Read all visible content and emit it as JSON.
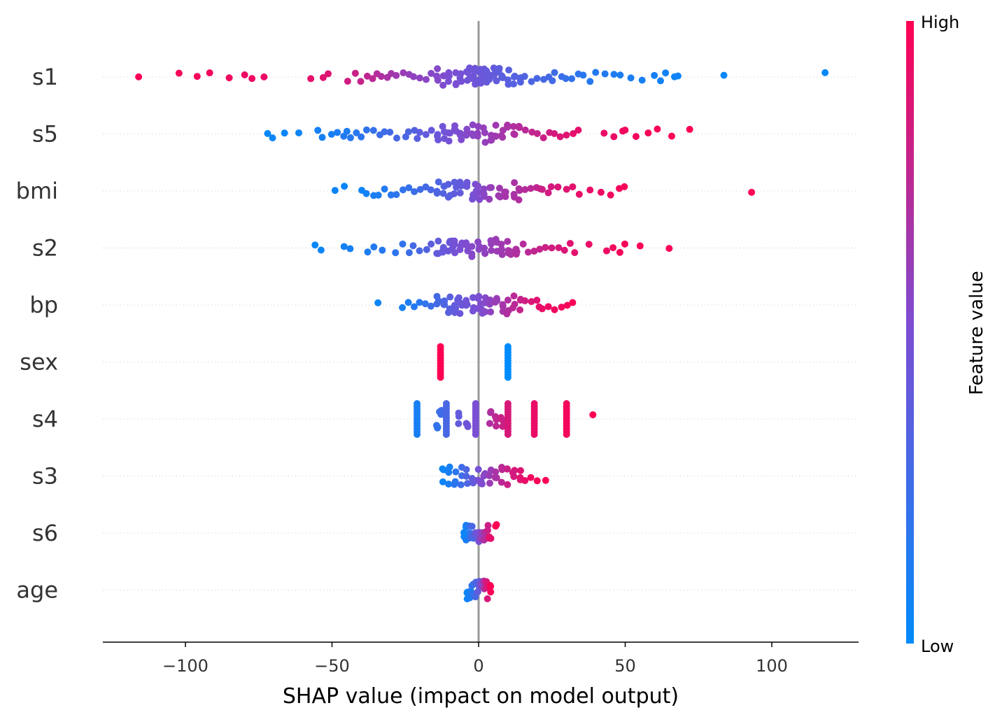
{
  "chart_data": {
    "type": "scatter",
    "subtype": "shap-beeswarm",
    "title": "",
    "xlabel": "SHAP value (impact on model output)",
    "ylabel": "",
    "xlim": [
      -127,
      130
    ],
    "xticks": [
      -100,
      -50,
      0,
      50,
      100
    ],
    "xtick_labels": [
      "−100",
      "−50",
      "0",
      "50",
      "100"
    ],
    "features": [
      "s1",
      "s5",
      "bmi",
      "s2",
      "bp",
      "sex",
      "s4",
      "s3",
      "s6",
      "age"
    ],
    "colorbar": {
      "label": "Feature value",
      "high_label": "High",
      "low_label": "Low",
      "low_color": "#008bfb",
      "mid_color": "#7a4fd4",
      "high_color": "#ff0052"
    },
    "zero_line_color": "#999999",
    "grid": "dotted horizontal per feature",
    "series": [
      {
        "feature": "s1",
        "x": [
          -116,
          -102,
          -96,
          -92,
          -85,
          -80,
          -77,
          -73,
          -57,
          -53,
          -51,
          -45,
          -42,
          -40,
          -38,
          -36,
          -35,
          -33,
          -31,
          -30,
          -28,
          -26,
          -24,
          -22,
          -20,
          -18,
          -16,
          -14,
          -12,
          -10,
          -8,
          -6,
          -4,
          -3,
          -2,
          -1,
          0,
          1,
          2,
          3,
          4,
          5,
          6,
          7,
          8,
          10,
          12,
          14,
          16,
          18,
          20,
          22,
          24,
          25,
          26,
          28,
          30,
          32,
          34,
          36,
          38,
          40,
          43,
          46,
          48,
          52,
          56,
          60,
          62,
          64,
          67,
          68,
          84,
          118
        ],
        "v": [
          0.98,
          0.97,
          0.96,
          0.96,
          0.95,
          0.94,
          0.94,
          0.93,
          0.9,
          0.88,
          0.88,
          0.82,
          0.8,
          0.78,
          0.76,
          0.75,
          0.72,
          0.7,
          0.68,
          0.66,
          0.64,
          0.62,
          0.6,
          0.58,
          0.58,
          0.56,
          0.55,
          0.54,
          0.52,
          0.5,
          0.5,
          0.48,
          0.47,
          0.46,
          0.45,
          0.45,
          0.44,
          0.44,
          0.43,
          0.42,
          0.42,
          0.41,
          0.4,
          0.38,
          0.37,
          0.36,
          0.35,
          0.34,
          0.33,
          0.32,
          0.3,
          0.29,
          0.28,
          0.27,
          0.26,
          0.24,
          0.22,
          0.2,
          0.18,
          0.17,
          0.16,
          0.15,
          0.14,
          0.13,
          0.12,
          0.11,
          0.1,
          0.09,
          0.08,
          0.07,
          0.06,
          0.06,
          0.04,
          0.02
        ]
      },
      {
        "feature": "s5",
        "x": [
          -72,
          -70,
          -66,
          -61,
          -55,
          -53,
          -50,
          -48,
          -46,
          -45,
          -44,
          -42,
          -40,
          -38,
          -36,
          -34,
          -32,
          -30,
          -28,
          -25,
          -24,
          -22,
          -21,
          -20,
          -18,
          -16,
          -14,
          -12,
          -10,
          -8,
          -6,
          -4,
          -2,
          0,
          2,
          4,
          6,
          8,
          10,
          12,
          14,
          16,
          18,
          20,
          22,
          24,
          26,
          28,
          30,
          32,
          34,
          43,
          46,
          49,
          50,
          54,
          58,
          61,
          66,
          72
        ],
        "v": [
          0.03,
          0.04,
          0.05,
          0.05,
          0.08,
          0.1,
          0.1,
          0.12,
          0.14,
          0.12,
          0.15,
          0.16,
          0.18,
          0.2,
          0.22,
          0.24,
          0.26,
          0.28,
          0.3,
          0.3,
          0.32,
          0.34,
          0.36,
          0.38,
          0.4,
          0.42,
          0.44,
          0.46,
          0.48,
          0.5,
          0.52,
          0.54,
          0.56,
          0.58,
          0.6,
          0.62,
          0.64,
          0.66,
          0.68,
          0.7,
          0.72,
          0.74,
          0.76,
          0.78,
          0.8,
          0.82,
          0.84,
          0.86,
          0.88,
          0.9,
          0.9,
          0.92,
          0.93,
          0.94,
          0.95,
          0.96,
          0.97,
          0.98,
          0.99,
          1.0
        ]
      },
      {
        "feature": "bmi",
        "x": [
          -49,
          -46,
          -40,
          -38,
          -36,
          -34,
          -32,
          -30,
          -28,
          -26,
          -24,
          -22,
          -20,
          -18,
          -16,
          -14,
          -12,
          -10,
          -8,
          -6,
          -4,
          -2,
          -1,
          0,
          2,
          4,
          7,
          9,
          12,
          14,
          16,
          18,
          20,
          21,
          22,
          24,
          25,
          27,
          30,
          32,
          34,
          38,
          42,
          45,
          48,
          50,
          93
        ],
        "v": [
          0.05,
          0.04,
          0.06,
          0.08,
          0.1,
          0.12,
          0.14,
          0.16,
          0.18,
          0.2,
          0.22,
          0.24,
          0.26,
          0.28,
          0.3,
          0.32,
          0.34,
          0.36,
          0.38,
          0.4,
          0.44,
          0.48,
          0.5,
          0.52,
          0.56,
          0.6,
          0.64,
          0.66,
          0.68,
          0.7,
          0.72,
          0.74,
          0.76,
          0.78,
          0.8,
          0.82,
          0.84,
          0.86,
          0.88,
          0.9,
          0.91,
          0.92,
          0.94,
          0.95,
          0.96,
          0.97,
          0.99
        ]
      },
      {
        "feature": "s2",
        "x": [
          -56,
          -54,
          -46,
          -44,
          -38,
          -36,
          -33,
          -28,
          -26,
          -24,
          -22,
          -20,
          -18,
          -16,
          -14,
          -12,
          -10,
          -9,
          -8,
          -6,
          -4,
          -2,
          0,
          2,
          4,
          6,
          8,
          10,
          11,
          13,
          15,
          17,
          19,
          21,
          23,
          25,
          27,
          29,
          31,
          33,
          38,
          44,
          46,
          48,
          50,
          55,
          65
        ],
        "v": [
          0.04,
          0.05,
          0.08,
          0.1,
          0.12,
          0.14,
          0.16,
          0.18,
          0.2,
          0.24,
          0.28,
          0.3,
          0.34,
          0.38,
          0.4,
          0.42,
          0.44,
          0.46,
          0.48,
          0.5,
          0.52,
          0.54,
          0.56,
          0.58,
          0.6,
          0.62,
          0.64,
          0.66,
          0.68,
          0.7,
          0.72,
          0.74,
          0.76,
          0.78,
          0.8,
          0.82,
          0.84,
          0.86,
          0.88,
          0.9,
          0.92,
          0.94,
          0.95,
          0.96,
          0.97,
          0.98,
          0.99
        ]
      },
      {
        "feature": "bp",
        "x": [
          -34,
          -26,
          -24,
          -22,
          -20,
          -18,
          -16,
          -14,
          -12,
          -10,
          -8,
          -7,
          -6,
          -4,
          -2,
          0,
          1,
          2,
          4,
          6,
          8,
          10,
          12,
          14,
          16,
          18,
          20,
          21,
          22,
          24,
          26,
          28,
          30,
          32
        ],
        "v": [
          0.05,
          0.1,
          0.12,
          0.14,
          0.16,
          0.2,
          0.24,
          0.28,
          0.32,
          0.36,
          0.4,
          0.42,
          0.44,
          0.46,
          0.48,
          0.5,
          0.52,
          0.54,
          0.58,
          0.62,
          0.66,
          0.7,
          0.74,
          0.78,
          0.82,
          0.86,
          0.88,
          0.9,
          0.92,
          0.94,
          0.95,
          0.96,
          0.97,
          0.98
        ]
      },
      {
        "feature": "sex",
        "x": [
          -13,
          10
        ],
        "v": [
          1.0,
          0.0
        ],
        "band": [
          true,
          true
        ]
      },
      {
        "feature": "s4",
        "x": [
          -21,
          -14,
          -13,
          -11,
          -7,
          -4,
          -1,
          4,
          6,
          8,
          10,
          19,
          30,
          39
        ],
        "v": [
          0.1,
          0.2,
          0.25,
          0.3,
          0.4,
          0.45,
          0.5,
          0.7,
          0.75,
          0.8,
          0.85,
          0.92,
          0.96,
          1.0
        ],
        "band": [
          true,
          false,
          false,
          true,
          false,
          false,
          true,
          false,
          false,
          false,
          true,
          true,
          true,
          false
        ]
      },
      {
        "feature": "s3",
        "x": [
          -12,
          -10,
          -8,
          -6,
          -4,
          -2,
          0,
          1,
          2,
          4,
          6,
          8,
          10,
          12,
          14,
          16,
          18,
          20,
          23
        ],
        "v": [
          0.05,
          0.1,
          0.18,
          0.25,
          0.32,
          0.4,
          0.48,
          0.52,
          0.56,
          0.62,
          0.68,
          0.74,
          0.8,
          0.84,
          0.88,
          0.92,
          0.95,
          0.97,
          0.99
        ]
      },
      {
        "feature": "s6",
        "x": [
          -5,
          -4,
          -3,
          -2,
          -1,
          0,
          1,
          2,
          3,
          4,
          6
        ],
        "v": [
          0.05,
          0.1,
          0.2,
          0.3,
          0.4,
          0.5,
          0.6,
          0.7,
          0.8,
          0.9,
          0.99
        ]
      },
      {
        "feature": "age",
        "x": [
          -4,
          -3,
          -2,
          -1,
          0,
          1,
          2,
          3,
          4
        ],
        "v": [
          0.05,
          0.12,
          0.2,
          0.3,
          0.4,
          0.55,
          0.7,
          0.85,
          0.98
        ]
      }
    ]
  }
}
